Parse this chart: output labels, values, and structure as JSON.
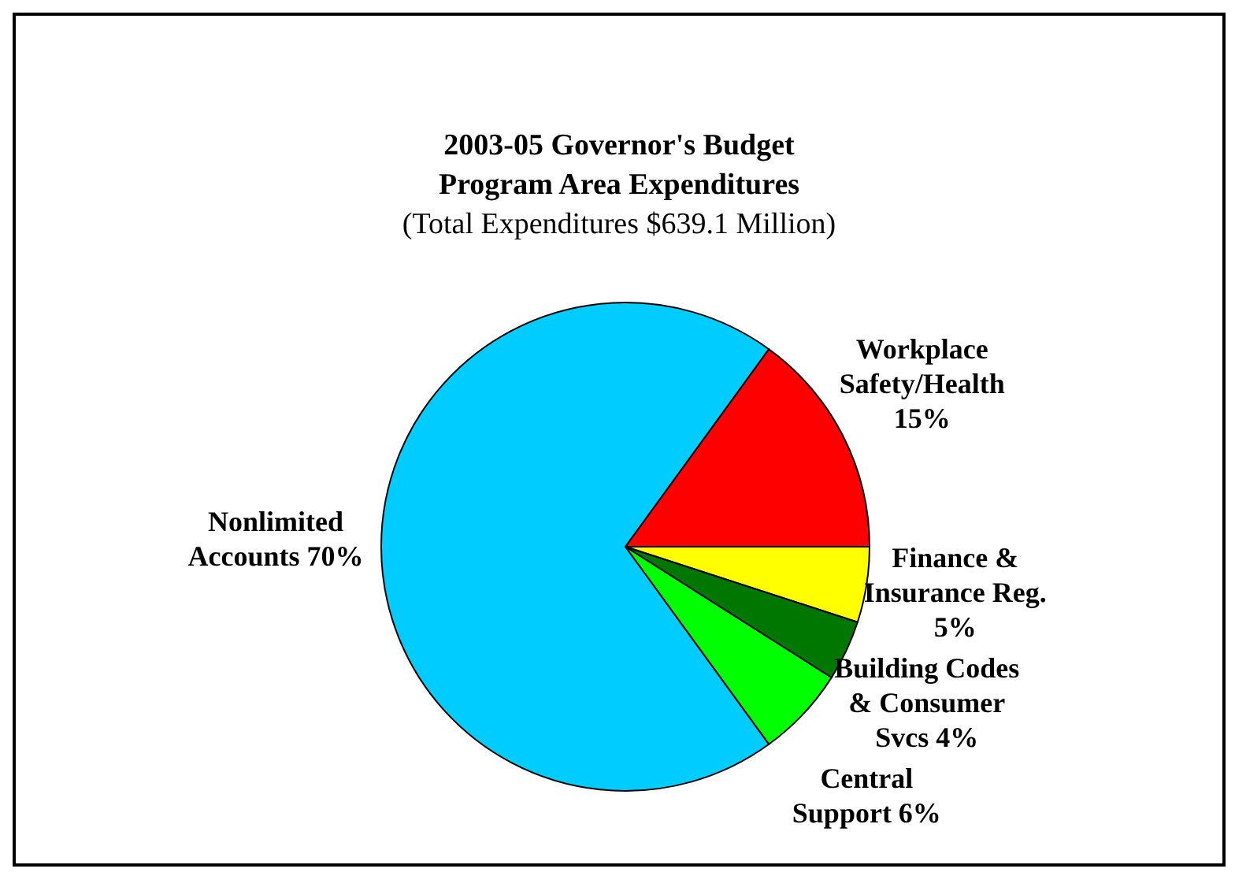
{
  "chart_data": {
    "type": "pie",
    "title": "2003-05 Governor's Budget Program Area Expenditures",
    "subtitle": "(Total Expenditures $639.1 Million)",
    "categories": [
      "Workplace Safety/Health",
      "Finance & Insurance Reg.",
      "Building Codes & Consumer Svcs",
      "Central Support",
      "Nonlimited Accounts"
    ],
    "values": [
      15,
      5,
      4,
      6,
      70
    ],
    "value_labels": [
      "15%",
      "5%",
      "4%",
      "6%",
      "70%"
    ],
    "colors": [
      "#ff0000",
      "#ffff00",
      "#007700",
      "#00ff00",
      "#00ccff"
    ],
    "legend": false
  }
}
